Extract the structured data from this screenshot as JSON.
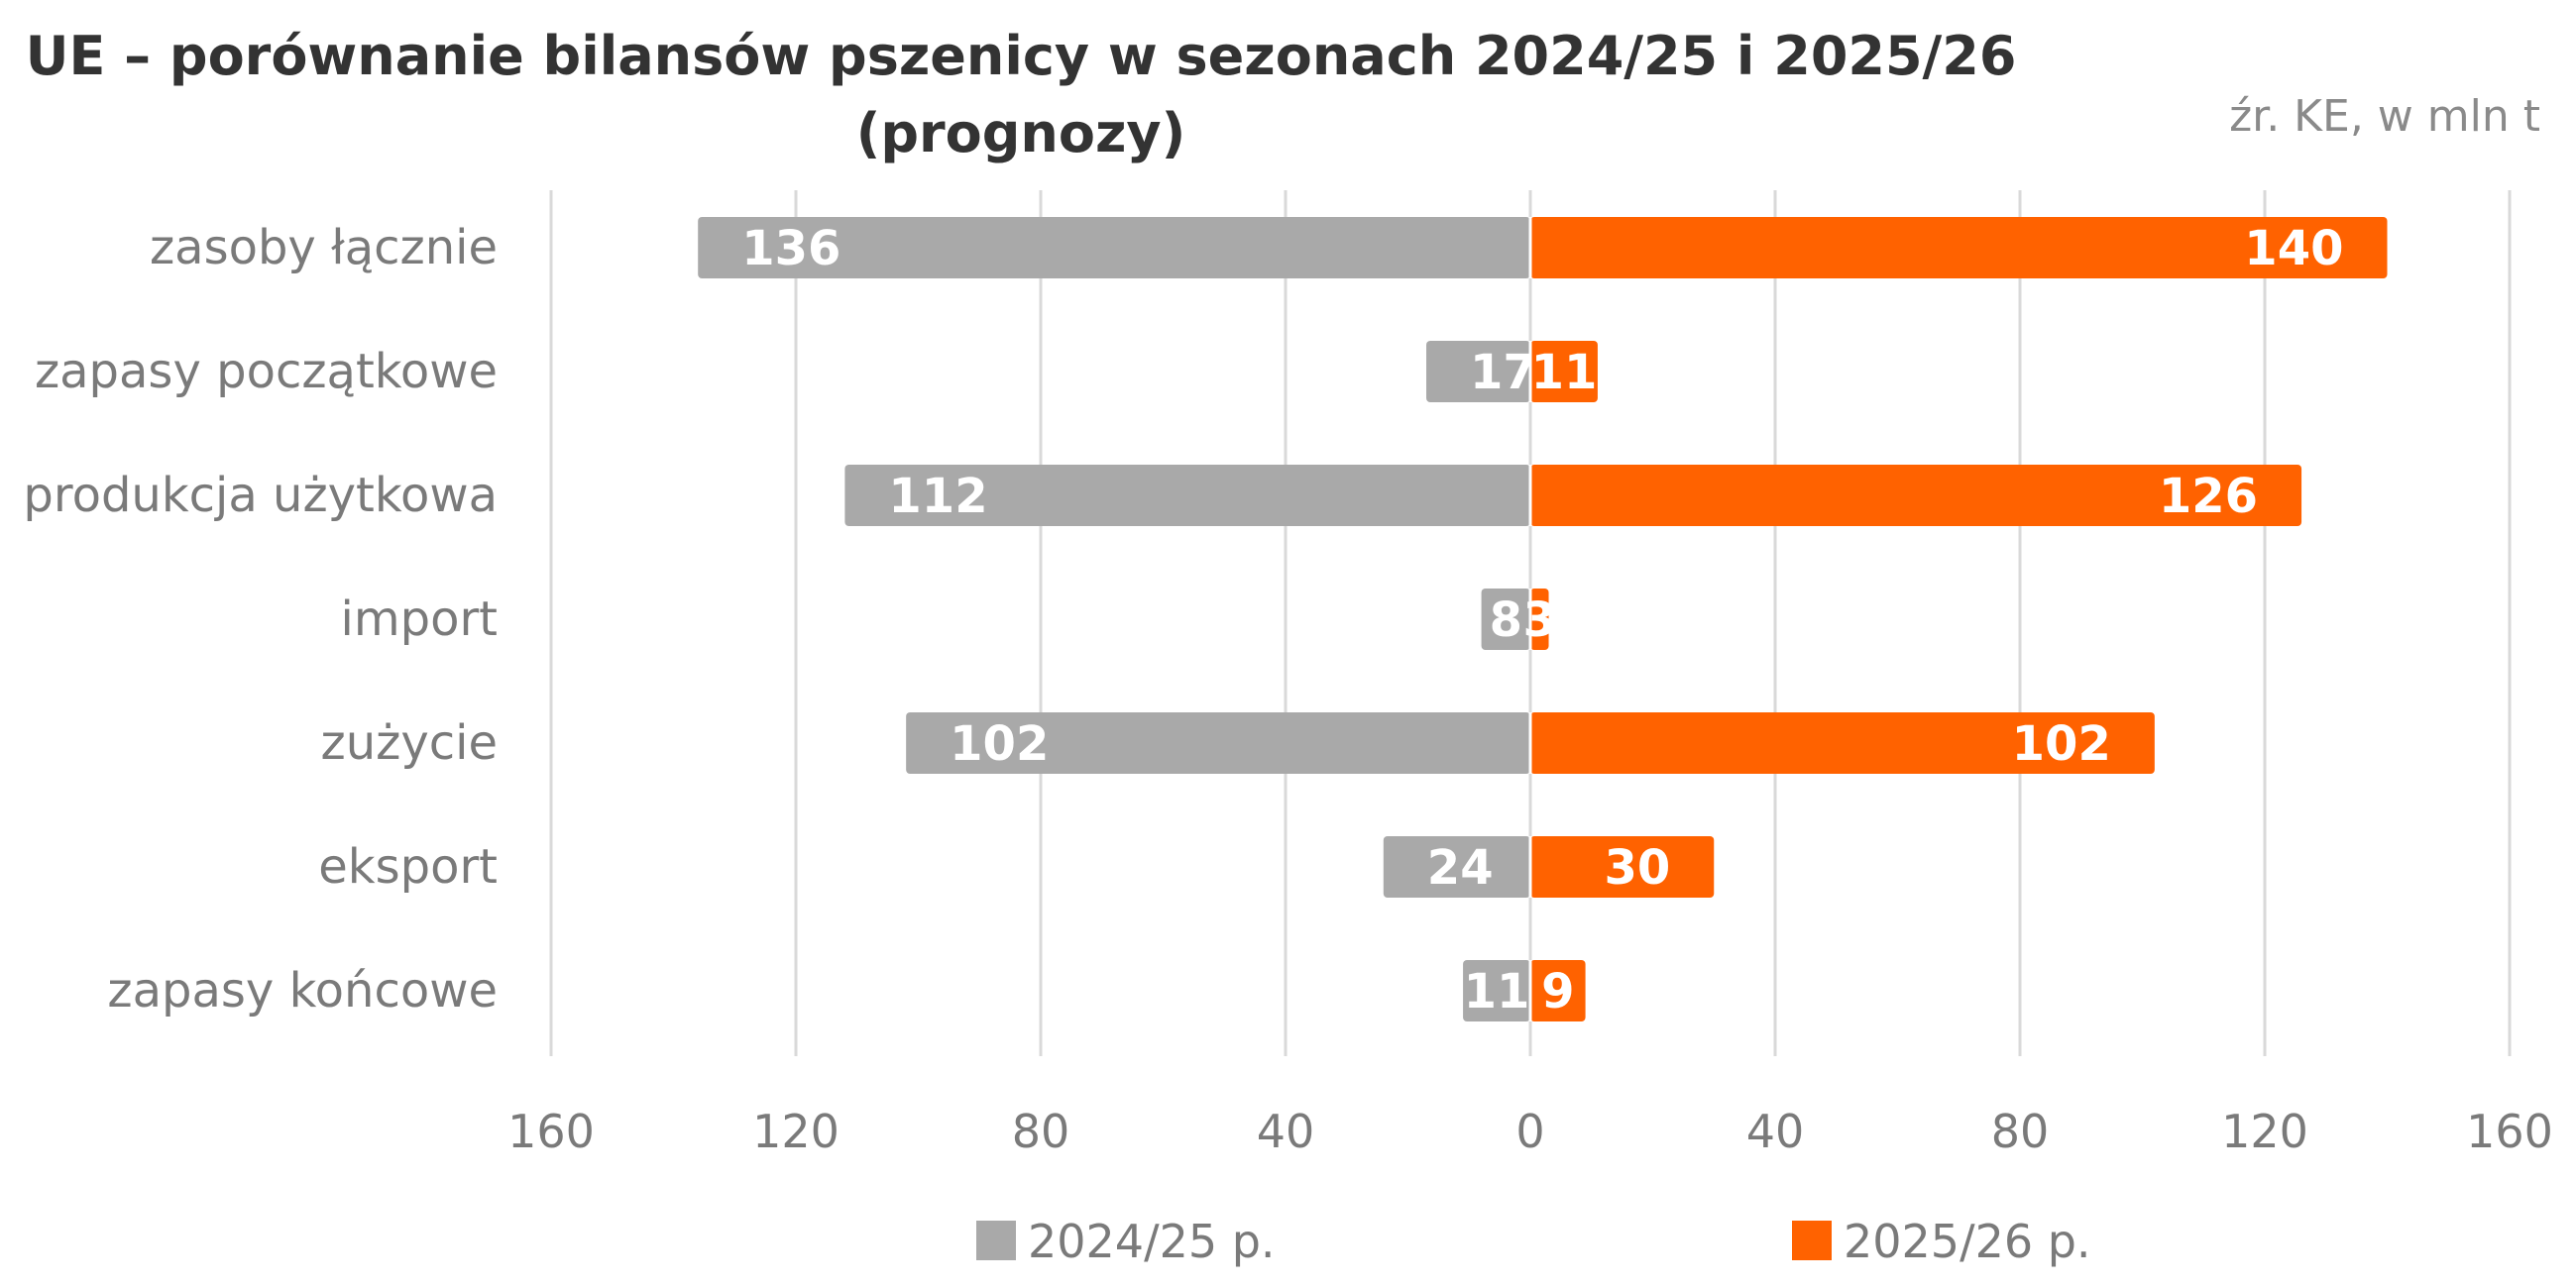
{
  "chart_data": {
    "type": "bar",
    "orientation": "horizontal-diverging",
    "title_line1": "UE – porównanie bilansów pszenicy w sezonach 2024/25 i 2025/26",
    "title_line2": "(prognozy)",
    "source": "źr. KE, w mln t",
    "categories": [
      "zasoby łącznie",
      "zapasy początkowe",
      "produkcja użytkowa",
      "import",
      "zużycie",
      "eksport",
      "zapasy końcowe"
    ],
    "series": [
      {
        "name": "2024/25 p.",
        "color": "#a9a9a9",
        "side": "left",
        "values": [
          136,
          17,
          112,
          8,
          102,
          24,
          11
        ]
      },
      {
        "name": "2025/26 p.",
        "color": "#ff6200",
        "side": "right",
        "values": [
          140,
          11,
          126,
          3,
          102,
          30,
          9
        ]
      }
    ],
    "xticks": [
      "160",
      "120",
      "80",
      "40",
      "0",
      "40",
      "80",
      "120",
      "160"
    ],
    "xlim": [
      -160,
      160
    ],
    "grid": true,
    "legend_position": "bottom"
  }
}
